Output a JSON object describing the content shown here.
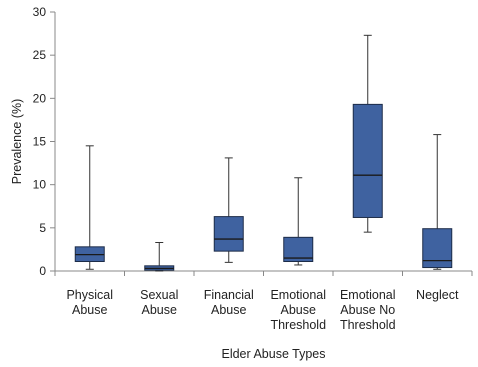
{
  "chart_data": {
    "type": "box",
    "title": "",
    "xlabel": "Elder Abuse Types",
    "ylabel": "Prevalence (%)",
    "ylim": [
      0,
      30
    ],
    "yticks": [
      0,
      5,
      10,
      15,
      20,
      25,
      30
    ],
    "grid": false,
    "box_color": "#3f62a0",
    "box_edge_color": "#1d2c48",
    "categories": [
      [
        "Physical",
        "Abuse"
      ],
      [
        "Sexual",
        "Abuse"
      ],
      [
        "Financial",
        "Abuse"
      ],
      [
        "Emotional",
        "Abuse",
        "Threshold"
      ],
      [
        "Emotional",
        "Abuse No",
        "Threshold"
      ],
      [
        "Neglect"
      ]
    ],
    "boxes": [
      {
        "min": 0.2,
        "q1": 1.1,
        "median": 1.9,
        "q3": 2.8,
        "max": 14.5
      },
      {
        "min": 0.0,
        "q1": 0.1,
        "median": 0.3,
        "q3": 0.6,
        "max": 3.3
      },
      {
        "min": 1.0,
        "q1": 2.3,
        "median": 3.7,
        "q3": 6.3,
        "max": 13.1
      },
      {
        "min": 0.7,
        "q1": 1.1,
        "median": 1.5,
        "q3": 3.9,
        "max": 10.8
      },
      {
        "min": 4.5,
        "q1": 6.2,
        "median": 11.1,
        "q3": 19.3,
        "max": 27.3
      },
      {
        "min": 0.2,
        "q1": 0.4,
        "median": 1.2,
        "q3": 4.9,
        "max": 15.8
      }
    ]
  }
}
